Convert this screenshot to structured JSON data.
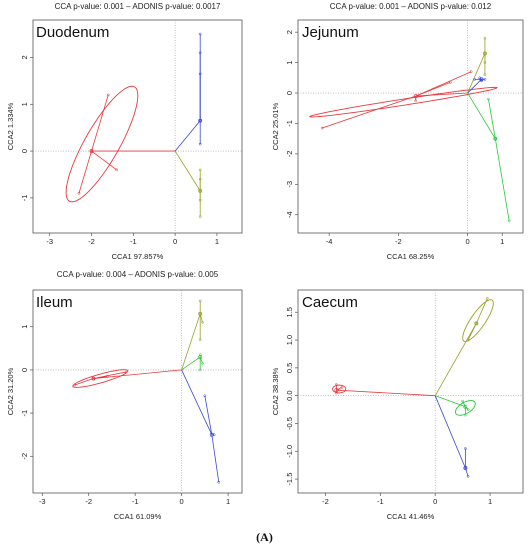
{
  "figure_caption": "(A)",
  "chart_data": [
    {
      "type": "scatter",
      "panel": "Duodenum",
      "title": "CCA p-value: 0.001 – ADONIS p-value: 0.0017",
      "xlabel": "CCA1 97.857%",
      "ylabel": "CCA2 1.334%",
      "xlim": [
        -3.4,
        1.6
      ],
      "ylim": [
        -1.75,
        2.8
      ],
      "xticks": [
        -3,
        -2,
        -1,
        0,
        1
      ],
      "yticks": [
        -1,
        0,
        1,
        2
      ],
      "grid": false,
      "series": [
        {
          "color": "#e8393f",
          "centroid": [
            -2.0,
            0.0
          ],
          "x": [
            -2.3,
            -1.6,
            -1.4,
            -2.0
          ],
          "y": [
            -0.9,
            1.2,
            -0.4,
            0.0
          ],
          "ellipse": {
            "cx": -1.75,
            "cy": 0.15,
            "rx": 1.45,
            "ry": 0.4,
            "angle": 57
          }
        },
        {
          "color": "#3a48d6",
          "centroid": [
            0.6,
            0.65
          ],
          "x": [
            0.6,
            0.6,
            0.6,
            0.6,
            0.6
          ],
          "y": [
            2.5,
            2.1,
            1.65,
            0.65,
            0.15
          ],
          "ellipse": null
        },
        {
          "color": "#9aa12a",
          "centroid": [
            0.6,
            -0.85
          ],
          "x": [
            0.6,
            0.6,
            0.6,
            0.6,
            0.6
          ],
          "y": [
            -0.4,
            -0.6,
            -0.85,
            -1.05,
            -1.4
          ],
          "ellipse": null
        }
      ]
    },
    {
      "type": "scatter",
      "panel": "Jejunum",
      "title": "CCA p-value: 0.001 – ADONIS p-value: 0.012",
      "xlabel": "CCA1 68.25%",
      "ylabel": "CCA2 25.01%",
      "xlim": [
        -4.9,
        1.6
      ],
      "ylim": [
        -4.6,
        2.4
      ],
      "xticks": [
        -4,
        -2,
        0,
        1
      ],
      "yticks": [
        -4,
        -3,
        -2,
        -1,
        0,
        1,
        2
      ],
      "grid": false,
      "series": [
        {
          "color": "#e8393f",
          "centroid": [
            -1.5,
            -0.1
          ],
          "x": [
            -4.2,
            -1.5,
            0.1,
            -0.5
          ],
          "y": [
            -1.15,
            -0.25,
            0.7,
            0.35
          ],
          "ellipse": {
            "cx": -1.85,
            "cy": -0.3,
            "rx": 2.75,
            "ry": 0.1,
            "angle": 10
          }
        },
        {
          "color": "#9aa12a",
          "centroid": [
            0.5,
            1.3
          ],
          "x": [
            0.5,
            0.5,
            0.5,
            0.5
          ],
          "y": [
            1.8,
            1.3,
            1.0,
            0.6
          ],
          "ellipse": null
        },
        {
          "color": "#3a48d6",
          "centroid": [
            0.4,
            0.45
          ],
          "x": [
            0.2,
            0.35,
            0.5,
            0.4
          ],
          "y": [
            0.45,
            0.5,
            0.45,
            0.4
          ],
          "ellipse": null
        },
        {
          "color": "#2bc83a",
          "centroid": [
            0.8,
            -1.5
          ],
          "x": [
            0.6,
            1.2,
            0.8
          ],
          "y": [
            -0.2,
            -4.2,
            -1.5
          ],
          "ellipse": null
        }
      ]
    },
    {
      "type": "scatter",
      "panel": "Ileum",
      "title": "CCA p-value: 0.004 – ADONIS p-value: 0.005",
      "xlabel": "CCA1 61.09%",
      "ylabel": "CCA2 31.20%",
      "xlim": [
        -3.2,
        1.3
      ],
      "ylim": [
        -2.85,
        1.85
      ],
      "xticks": [
        -3,
        -2,
        -1,
        0,
        1
      ],
      "yticks": [
        -2,
        -1,
        0,
        1
      ],
      "grid": false,
      "series": [
        {
          "color": "#e8393f",
          "centroid": [
            -1.9,
            -0.2
          ],
          "x": [
            -2.3,
            -1.9,
            -1.2,
            -1.6
          ],
          "y": [
            -0.35,
            -0.2,
            -0.05,
            -0.15
          ],
          "ellipse": {
            "cx": -1.75,
            "cy": -0.2,
            "rx": 0.62,
            "ry": 0.1,
            "angle": 17
          }
        },
        {
          "color": "#9aa12a",
          "centroid": [
            0.4,
            1.3
          ],
          "x": [
            0.4,
            0.4,
            0.45,
            0.4
          ],
          "y": [
            1.6,
            1.3,
            1.1,
            0.7
          ],
          "ellipse": null
        },
        {
          "color": "#2bc83a",
          "centroid": [
            0.4,
            0.3
          ],
          "x": [
            0.4,
            0.45,
            0.4
          ],
          "y": [
            0.35,
            0.15,
            0.0
          ],
          "ellipse": null
        },
        {
          "color": "#3a48d6",
          "centroid": [
            0.65,
            -1.5
          ],
          "x": [
            0.5,
            0.7,
            0.8
          ],
          "y": [
            -0.6,
            -1.5,
            -2.6
          ],
          "ellipse": null
        }
      ]
    },
    {
      "type": "scatter",
      "panel": "Caecum",
      "title": "",
      "xlabel": "CCA1 41.46%",
      "ylabel": "CCA2 38.38%",
      "xlim": [
        -2.5,
        1.6
      ],
      "ylim": [
        -1.75,
        1.9
      ],
      "xticks": [
        -2,
        -1,
        0,
        1
      ],
      "yticks": [
        -1.5,
        -1.0,
        -0.5,
        0.0,
        0.5,
        1.0,
        1.5
      ],
      "grid": false,
      "series": [
        {
          "color": "#e8393f",
          "centroid": [
            -1.8,
            0.1
          ],
          "x": [
            -1.8,
            -1.7,
            -1.8,
            -1.75
          ],
          "y": [
            0.2,
            0.15,
            0.05,
            0.1
          ],
          "ellipse": {
            "cx": -1.75,
            "cy": 0.12,
            "rx": 0.12,
            "ry": 0.07,
            "angle": 0
          }
        },
        {
          "color": "#9aa12a",
          "centroid": [
            0.75,
            1.3
          ],
          "x": [
            0.95,
            0.75,
            0.6
          ],
          "y": [
            1.75,
            1.3,
            1.0
          ],
          "ellipse": {
            "cx": 0.78,
            "cy": 1.35,
            "rx": 0.45,
            "ry": 0.13,
            "angle": 55
          }
        },
        {
          "color": "#2bc83a",
          "centroid": [
            0.55,
            -0.2
          ],
          "x": [
            0.5,
            0.6,
            0.55
          ],
          "y": [
            -0.1,
            -0.25,
            -0.35
          ],
          "ellipse": {
            "cx": 0.55,
            "cy": -0.22,
            "rx": 0.2,
            "ry": 0.1,
            "angle": 30
          }
        },
        {
          "color": "#3a48d6",
          "centroid": [
            0.55,
            -1.3
          ],
          "x": [
            0.55,
            0.55,
            0.6
          ],
          "y": [
            -0.95,
            -1.3,
            -1.45
          ],
          "ellipse": null
        }
      ]
    }
  ]
}
